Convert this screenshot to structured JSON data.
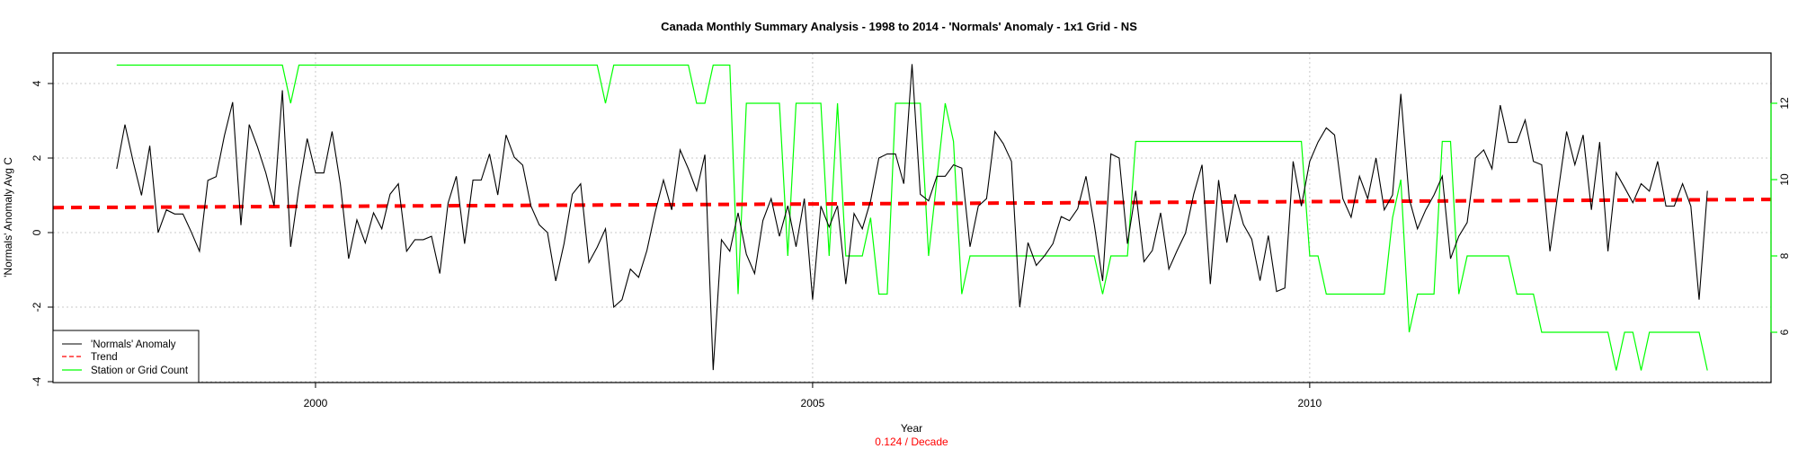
{
  "chart_data": {
    "type": "line",
    "title": "Canada Monthly Summary Analysis - 1998 to 2014 - 'Normals' Anomaly - 1x1 Grid - NS",
    "xlabel": "Year",
    "subtitle": "0.124  / Decade",
    "ylabel": "'Normals' Anomaly Avg C",
    "xlim": [
      1997.36,
      2014.64
    ],
    "ylim": [
      -4,
      4.8
    ],
    "y2lim": [
      4.5,
      13.7
    ],
    "x_start": 1998,
    "x_step_months": 1,
    "x_ticks": [
      "2000",
      "2005",
      "2010"
    ],
    "y_ticks": [
      "4",
      "2",
      "0",
      "-2",
      "-4"
    ],
    "y2_ticks": [
      "12",
      "10",
      "8",
      "6"
    ],
    "grid": true,
    "legend_position": "bottom-left",
    "legend": [
      "'Normals' Anomaly",
      "Trend",
      "Station or Grid Count"
    ],
    "colors": {
      "anomaly": "#000000",
      "trend": "#ff0000",
      "count": "#00ff00",
      "grid": "#c8c8c8",
      "subtitle": "#ff0000"
    },
    "series": [
      {
        "name": "'Normals' Anomaly",
        "axis": "left",
        "values": [
          1.71,
          2.9,
          1.9,
          1.0,
          2.33,
          0.0,
          0.61,
          0.5,
          0.5,
          0.02,
          -0.5,
          1.4,
          1.5,
          2.6,
          3.5,
          0.2,
          2.9,
          2.3,
          1.6,
          0.72,
          3.82,
          -0.38,
          1.2,
          2.52,
          1.6,
          1.6,
          2.71,
          1.3,
          -0.7,
          0.34,
          -0.28,
          0.53,
          0.1,
          1.03,
          1.31,
          -0.5,
          -0.19,
          -0.19,
          -0.1,
          -1.1,
          0.79,
          1.51,
          -0.3,
          1.41,
          1.41,
          2.11,
          1.01,
          2.62,
          2.02,
          1.81,
          0.71,
          0.21,
          0.0,
          -1.3,
          -0.3,
          1.03,
          1.31,
          -0.8,
          -0.39,
          0.1,
          -2.0,
          -1.8,
          -0.98,
          -1.2,
          -0.48,
          0.55,
          1.41,
          0.61,
          2.22,
          1.71,
          1.12,
          2.09,
          -3.69,
          -0.19,
          -0.5,
          0.53,
          -0.58,
          -1.1,
          0.32,
          0.91,
          -0.1,
          0.72,
          -0.38,
          0.91,
          -1.8,
          0.71,
          0.15,
          0.72,
          -1.38,
          0.51,
          0.1,
          0.85,
          2.0,
          2.11,
          2.11,
          1.31,
          4.52,
          1.03,
          0.85,
          1.51,
          1.51,
          1.82,
          1.73,
          -0.38,
          0.71,
          0.91,
          2.71,
          2.39,
          1.91,
          -2.0,
          -0.27,
          -0.88,
          -0.62,
          -0.3,
          0.43,
          0.32,
          0.64,
          1.51,
          0.22,
          -1.3,
          2.11,
          2.0,
          -0.3,
          1.12,
          -0.78,
          -0.48,
          0.53,
          -0.98,
          -0.48,
          -0.02,
          1.03,
          1.82,
          -1.38,
          1.41,
          -0.27,
          1.03,
          0.22,
          -0.18,
          -1.29,
          -0.08,
          -1.58,
          -1.49,
          1.91,
          0.71,
          1.91,
          2.43,
          2.81,
          2.62,
          0.91,
          0.41,
          1.51,
          0.91,
          2.0,
          0.61,
          1.01,
          3.72,
          0.91,
          0.1,
          0.61,
          1.01,
          1.51,
          -0.7,
          -0.1,
          0.27,
          2.0,
          2.22,
          1.71,
          3.42,
          2.42,
          2.42,
          3.02,
          1.91,
          1.82,
          -0.5,
          1.11,
          2.71,
          1.82,
          2.62,
          0.61,
          2.43,
          -0.5,
          1.61,
          1.21,
          0.8,
          1.31,
          1.11,
          1.91,
          0.71,
          0.71,
          1.31,
          0.71,
          -1.8,
          1.12
        ]
      },
      {
        "name": "Trend",
        "axis": "left",
        "x": [
          1997.36,
          2014.64
        ],
        "values": [
          0.67,
          0.89
        ]
      },
      {
        "name": "Station or Grid Count",
        "axis": "right",
        "values": [
          13,
          13,
          13,
          13,
          13,
          13,
          13,
          13,
          13,
          13,
          13,
          13,
          13,
          13,
          13,
          13,
          13,
          13,
          13,
          13,
          13,
          12,
          13,
          13,
          13,
          13,
          13,
          13,
          13,
          13,
          13,
          13,
          13,
          13,
          13,
          13,
          13,
          13,
          13,
          13,
          13,
          13,
          13,
          13,
          13,
          13,
          13,
          13,
          13,
          13,
          13,
          13,
          13,
          13,
          13,
          13,
          13,
          13,
          13,
          12,
          13,
          13,
          13,
          13,
          13,
          13,
          13,
          13,
          13,
          13,
          12,
          12,
          13,
          13,
          13,
          7,
          12,
          12,
          12,
          12,
          12,
          8,
          12,
          12,
          12,
          12,
          8,
          12,
          8,
          8,
          8,
          9,
          7,
          7,
          12,
          12,
          12,
          12,
          8,
          10,
          12,
          11,
          7,
          8,
          8,
          8,
          8,
          8,
          8,
          8,
          8,
          8,
          8,
          8,
          8,
          8,
          8,
          8,
          8,
          7,
          8,
          8,
          8,
          11,
          11,
          11,
          11,
          11,
          11,
          11,
          11,
          11,
          11,
          11,
          11,
          11,
          11,
          11,
          11,
          11,
          11,
          11,
          11,
          11,
          8,
          8,
          7,
          7,
          7,
          7,
          7,
          7,
          7,
          7,
          9,
          10,
          6,
          7,
          7,
          7,
          11,
          11,
          7,
          8,
          8,
          8,
          8,
          8,
          8,
          7,
          7,
          7,
          6,
          6,
          6,
          6,
          6,
          6,
          6,
          6,
          6,
          5,
          6,
          6,
          5,
          6,
          6,
          6,
          6,
          6,
          6,
          6,
          5
        ]
      }
    ]
  }
}
